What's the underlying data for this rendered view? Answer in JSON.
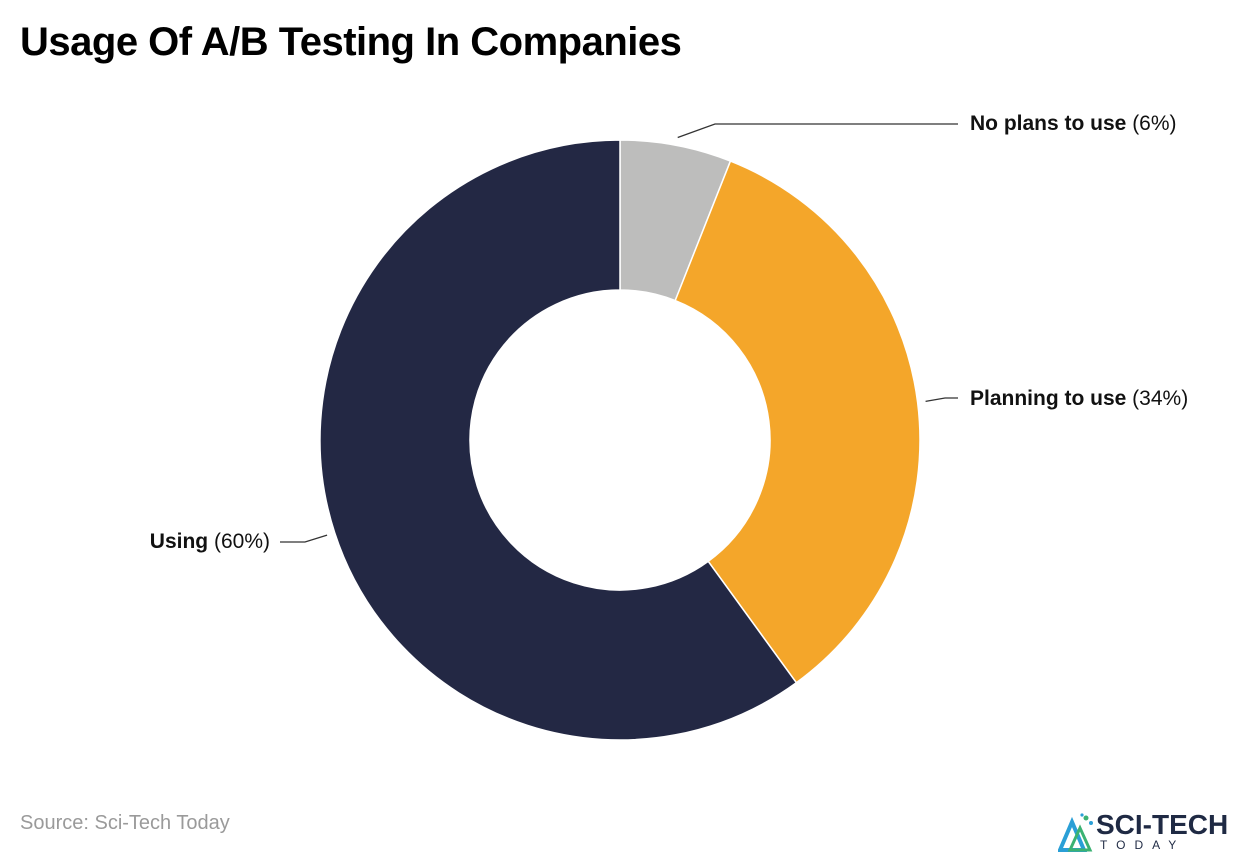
{
  "title": "Usage Of A/B Testing In Companies",
  "source": "Source: Sci-Tech Today",
  "logo": {
    "name": "SCI-TECH",
    "sub": "TODAY"
  },
  "colors": {
    "using": "#232844",
    "planning": "#f4a62a",
    "no_plans": "#bdbdbc"
  },
  "chart_data": {
    "type": "pie",
    "style": "donut",
    "title": "Usage Of A/B Testing In Companies",
    "slices": [
      {
        "label": "No plans to use",
        "value": 6,
        "display": "(6%)",
        "color": "#bdbdbc"
      },
      {
        "label": "Planning to use",
        "value": 34,
        "display": "(34%)",
        "color": "#f4a62a"
      },
      {
        "label": "Using",
        "value": 60,
        "display": "(60%)",
        "color": "#232844"
      }
    ],
    "start_angle": "12 o'clock",
    "direction": "clockwise",
    "legend": "none (direct labels)"
  }
}
